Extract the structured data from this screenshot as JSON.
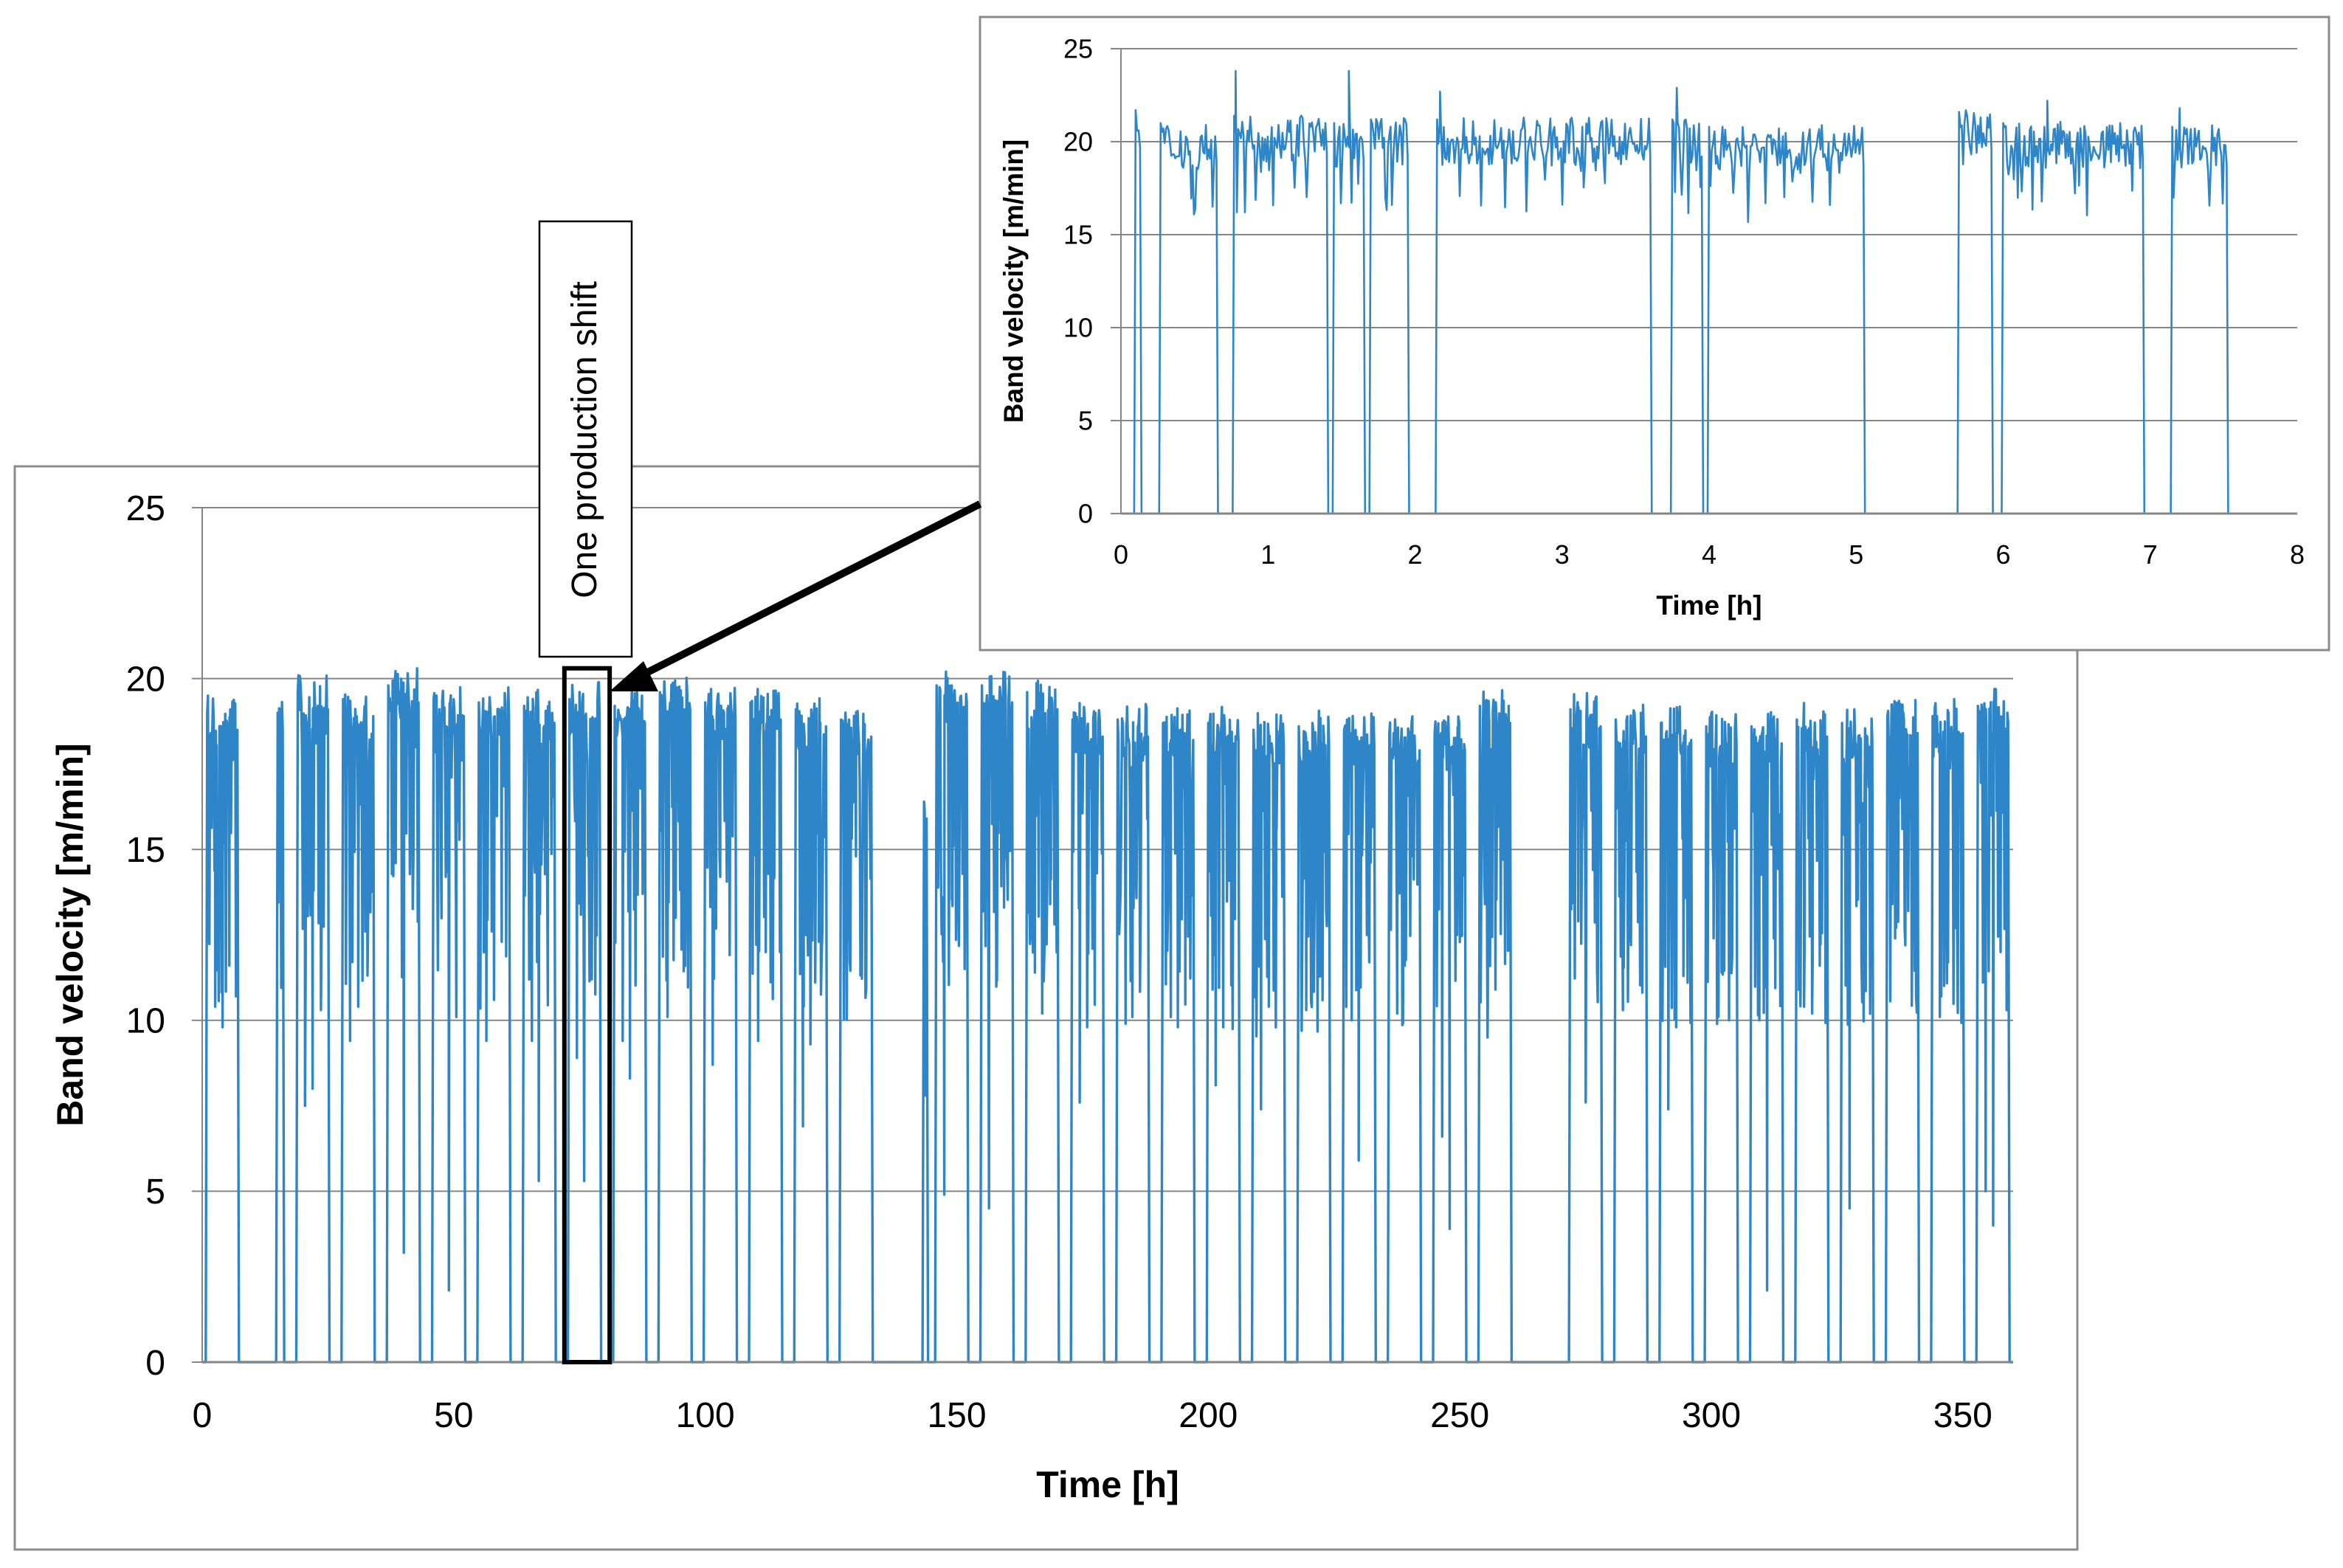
{
  "chart_data": [
    {
      "id": "main",
      "type": "line",
      "title": "",
      "xlabel": "Time [h]",
      "ylabel": "Band velocity [m/min]",
      "xlim": [
        0,
        360
      ],
      "ylim": [
        0,
        25
      ],
      "xticks": [
        0,
        50,
        100,
        150,
        200,
        250,
        300,
        350
      ],
      "yticks": [
        0,
        5,
        10,
        15,
        20,
        25
      ],
      "grid": "horizontal",
      "line_color": "#2e86c8",
      "series": [
        {
          "name": "Band velocity",
          "shifts": [
            {
              "start": 1.0,
              "end": 7.0,
              "level": 19.0,
              "dips": [
                10.4,
                9.8,
                11.6
              ]
            },
            {
              "start": 15.0,
              "end": 16.0,
              "level": 19.0,
              "dips": []
            },
            {
              "start": 19.0,
              "end": 25.0,
              "level": 19.6,
              "dips": [
                7.5,
                8.0,
                10.3
              ]
            },
            {
              "start": 28.0,
              "end": 34.0,
              "level": 19.4,
              "dips": [
                9.4,
                10.4,
                12.6
              ]
            },
            {
              "start": 37.0,
              "end": 43.0,
              "level": 19.8,
              "dips": [
                14.6,
                3.2,
                16.2
              ]
            },
            {
              "start": 46.0,
              "end": 52.0,
              "level": 19.4,
              "dips": [
                14.2,
                2.1,
                10.1
              ]
            },
            {
              "start": 55.0,
              "end": 61.0,
              "level": 19.3,
              "dips": [
                9.4,
                10.6,
                12.3
              ]
            },
            {
              "start": 64.0,
              "end": 70.0,
              "level": 19.2,
              "dips": [
                9.4,
                5.3,
                14.2
              ]
            },
            {
              "start": 73.0,
              "end": 79.0,
              "level": 19.4,
              "dips": [
                8.9,
                5.3,
                11.2
              ]
            },
            {
              "start": 82.0,
              "end": 88.0,
              "level": 19.2,
              "dips": [
                9.4,
                8.3,
                15.2
              ]
            },
            {
              "start": 91.0,
              "end": 97.0,
              "level": 19.6,
              "dips": [
                10.1,
                13.0,
                15.4
              ]
            },
            {
              "start": 100.0,
              "end": 106.0,
              "level": 19.3,
              "dips": [
                8.7,
                14.2,
                16.0
              ]
            },
            {
              "start": 109.0,
              "end": 115.0,
              "level": 19.3,
              "dips": [
                9.4,
                12.0,
                14.2
              ]
            },
            {
              "start": 118.0,
              "end": 124.0,
              "level": 19.1,
              "dips": [
                6.9,
                9.3,
                12.3
              ]
            },
            {
              "start": 127.0,
              "end": 133.0,
              "level": 18.8,
              "dips": [
                12.4,
                14.8,
                15.2
              ]
            },
            {
              "start": 143.5,
              "end": 144.0,
              "level": 16.4,
              "dips": []
            },
            {
              "start": 146.0,
              "end": 152.0,
              "level": 19.8,
              "dips": [
                4.9,
                13.6,
                14.7
              ]
            },
            {
              "start": 155.0,
              "end": 161.0,
              "level": 19.8,
              "dips": [
                4.5,
                12.0,
                13.3
              ]
            },
            {
              "start": 164.0,
              "end": 170.0,
              "level": 19.6,
              "dips": [
                11.4,
                10.2,
                13.4
              ]
            },
            {
              "start": 173.0,
              "end": 179.0,
              "level": 18.8,
              "dips": [
                7.6,
                9.8,
                14.9
              ]
            },
            {
              "start": 182.0,
              "end": 188.0,
              "level": 18.8,
              "dips": [
                9.9,
                10.1,
                13.0
              ]
            },
            {
              "start": 191.0,
              "end": 197.0,
              "level": 18.7,
              "dips": [
                10.1,
                9.8,
                15.0
              ]
            },
            {
              "start": 200.0,
              "end": 206.0,
              "level": 18.7,
              "dips": [
                8.1,
                9.8,
                15.7
              ]
            },
            {
              "start": 209.0,
              "end": 215.0,
              "level": 18.5,
              "dips": [
                7.4,
                10.4,
                15.6
              ]
            },
            {
              "start": 218.0,
              "end": 224.0,
              "level": 18.6,
              "dips": [
                10.3,
                11.7,
                11.3
              ]
            },
            {
              "start": 227.0,
              "end": 233.0,
              "level": 18.5,
              "dips": [
                10.0,
                5.9,
                12.5
              ]
            },
            {
              "start": 236.0,
              "end": 242.0,
              "level": 18.4,
              "dips": [
                10.2,
                11.6,
                14.8
              ]
            },
            {
              "start": 245.0,
              "end": 251.0,
              "level": 18.4,
              "dips": [
                6.6,
                3.9,
                12.5
              ]
            },
            {
              "start": 254.0,
              "end": 260.0,
              "level": 19.2,
              "dips": [
                9.5,
                10.9,
                14.7
              ]
            },
            {
              "start": 272.0,
              "end": 278.0,
              "level": 19.1,
              "dips": [
                12.9,
                7.6,
                14.4
              ]
            },
            {
              "start": 281.0,
              "end": 287.0,
              "level": 18.8,
              "dips": [
                10.3,
                12.2,
                15.7
              ]
            },
            {
              "start": 290.0,
              "end": 296.0,
              "level": 18.7,
              "dips": [
                7.4,
                9.8,
                11.3
              ]
            },
            {
              "start": 299.0,
              "end": 305.0,
              "level": 18.6,
              "dips": [
                12.4,
                11.4,
                10.0
              ]
            },
            {
              "start": 308.0,
              "end": 314.0,
              "level": 18.6,
              "dips": [
                10.0,
                2.1,
                12.4
              ]
            },
            {
              "start": 317.0,
              "end": 323.0,
              "level": 18.8,
              "dips": [
                10.4,
                10.2,
                11.6
              ]
            },
            {
              "start": 326.0,
              "end": 332.0,
              "level": 18.7,
              "dips": [
                4.5,
                13.7,
                12.3
              ]
            },
            {
              "start": 335.0,
              "end": 341.0,
              "level": 18.9,
              "dips": [
                12.4,
                15.6,
                16.3
              ]
            },
            {
              "start": 344.0,
              "end": 350.0,
              "level": 18.9,
              "dips": [
                10.1,
                11.7,
                12.7
              ]
            },
            {
              "start": 353.0,
              "end": 359.0,
              "level": 19.2,
              "dips": [
                5.0,
                4.0,
                12.0
              ]
            }
          ]
        }
      ],
      "highlight": {
        "x_start": 72.0,
        "x_end": 81.0,
        "label": "One production shift"
      }
    },
    {
      "id": "inset",
      "type": "line",
      "title": "",
      "xlabel": "Time [h]",
      "ylabel": "Band velocity [m/min]",
      "xlim": [
        0,
        8
      ],
      "ylim": [
        0,
        25
      ],
      "xticks": [
        0,
        1,
        2,
        3,
        4,
        5,
        6,
        7,
        8
      ],
      "yticks": [
        0,
        5,
        10,
        15,
        20,
        25
      ],
      "grid": "horizontal",
      "line_color": "#2e86c8",
      "series": [
        {
          "name": "Band velocity",
          "segments": [
            {
              "start": 0.1,
              "end": 0.13,
              "level": 20.5
            },
            {
              "start": 0.27,
              "end": 0.65,
              "level": 19.8
            },
            {
              "start": 0.77,
              "end": 1.4,
              "level": 20.2
            },
            {
              "start": 1.45,
              "end": 1.65,
              "level": 19.8
            },
            {
              "start": 1.7,
              "end": 1.95,
              "level": 20.0
            },
            {
              "start": 2.15,
              "end": 3.6,
              "level": 20.0
            },
            {
              "start": 3.75,
              "end": 3.95,
              "level": 20.0
            },
            {
              "start": 4.0,
              "end": 5.05,
              "level": 19.6
            },
            {
              "start": 5.7,
              "end": 5.92,
              "level": 20.4
            },
            {
              "start": 6.0,
              "end": 6.95,
              "level": 19.8
            },
            {
              "start": 7.15,
              "end": 7.52,
              "level": 19.6
            }
          ],
          "peaks": [
            {
              "x": 0.78,
              "y": 23.8
            },
            {
              "x": 1.55,
              "y": 23.8
            },
            {
              "x": 2.17,
              "y": 22.7
            },
            {
              "x": 3.78,
              "y": 22.9
            },
            {
              "x": 6.3,
              "y": 22.2
            },
            {
              "x": 7.2,
              "y": 21.8
            }
          ]
        }
      ]
    }
  ]
}
